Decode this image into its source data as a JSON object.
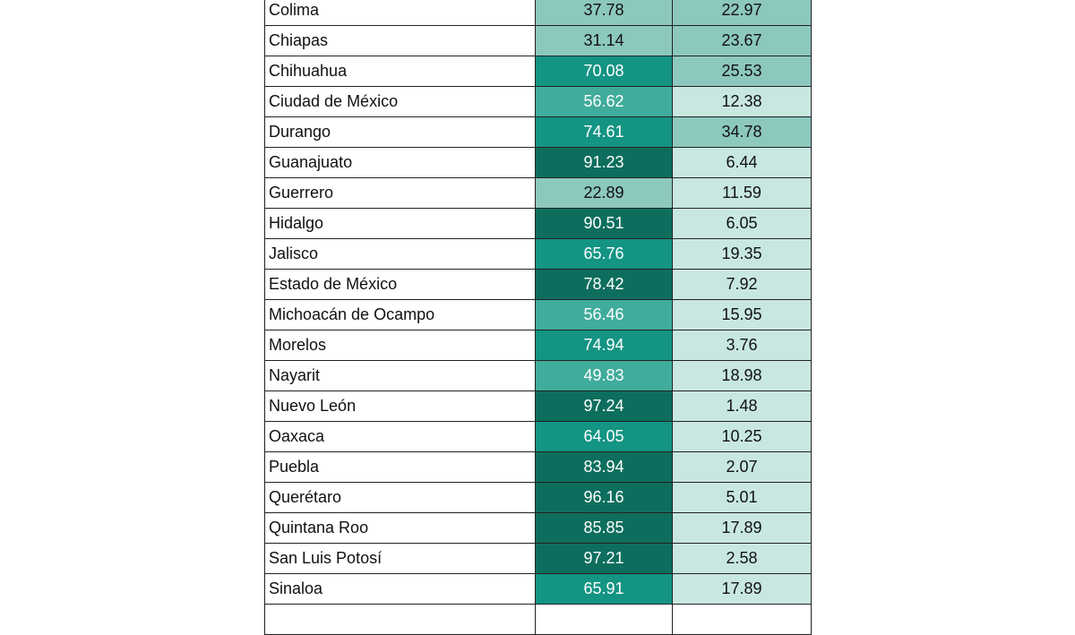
{
  "table": {
    "rows": [
      [
        "Colima",
        37.78,
        22.97
      ],
      [
        "Chiapas",
        31.14,
        23.67
      ],
      [
        "Chihuahua",
        70.08,
        25.53
      ],
      [
        "Ciudad de México",
        56.62,
        12.38
      ],
      [
        "Durango",
        74.61,
        34.78
      ],
      [
        "Guanajuato",
        91.23,
        6.44
      ],
      [
        "Guerrero",
        22.89,
        11.59
      ],
      [
        "Hidalgo",
        90.51,
        6.05
      ],
      [
        "Jalisco",
        65.76,
        19.35
      ],
      [
        "Estado de México",
        78.42,
        7.92
      ],
      [
        "Michoacán de Ocampo",
        56.46,
        15.95
      ],
      [
        "Morelos",
        74.94,
        3.76
      ],
      [
        "Nayarit",
        49.83,
        18.98
      ],
      [
        "Nuevo León",
        97.24,
        1.48
      ],
      [
        "Oaxaca",
        64.05,
        10.25
      ],
      [
        "Puebla",
        83.94,
        2.07
      ],
      [
        "Querétaro",
        96.16,
        5.01
      ],
      [
        "Quintana Roo",
        85.85,
        17.89
      ],
      [
        "San Luis Potosí",
        97.21,
        2.58
      ],
      [
        "Sinaloa",
        65.91,
        17.89
      ]
    ]
  }
}
